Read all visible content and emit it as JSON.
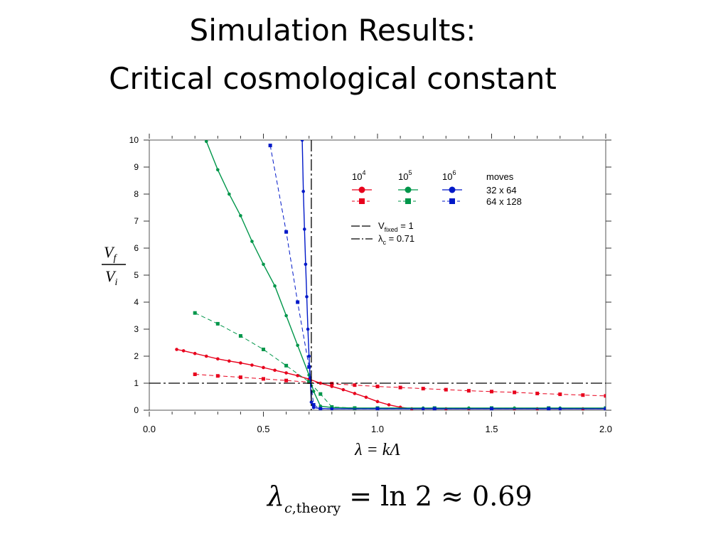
{
  "slide": {
    "title_line1": "Simulation Results:",
    "title_line2": "Critical cosmological constant",
    "formula": {
      "symbol": "λ",
      "subscript_italic": "c",
      "subscript_rest": ",theory",
      "rhs": " = ln 2 ≈ 0.69"
    }
  },
  "chart_data": {
    "type": "scatter",
    "xlabel": "λ = kΛ",
    "ylabel_numerator": "V",
    "ylabel_numerator_sub": "f",
    "ylabel_denominator": "V",
    "ylabel_denominator_sub": "i",
    "xlim": [
      0.0,
      2.0
    ],
    "ylim": [
      0,
      10
    ],
    "x_ticks": [
      "0.0",
      "0.5",
      "1.0",
      "1.5",
      "2.0"
    ],
    "y_ticks": [
      "0",
      "1",
      "2",
      "3",
      "4",
      "5",
      "6",
      "7",
      "8",
      "9",
      "10"
    ],
    "grid": false,
    "legend": {
      "header": [
        "10",
        "10",
        "10",
        "moves"
      ],
      "header_exponents": [
        "4",
        "5",
        "6"
      ],
      "rows": [
        "32 x 64",
        "64 x 128"
      ],
      "lines": [
        {
          "label": "V",
          "sub": "fixed",
          "rest": " = 1"
        },
        {
          "label": "λ",
          "sub": "c",
          "rest": " = 0.71"
        }
      ],
      "placement": "top-right"
    },
    "colors": {
      "1e4": "#e8001c",
      "1e5": "#00964a",
      "1e6": "#0018c8",
      "reference": "#000000"
    },
    "reference_lines": {
      "v_fixed": 1,
      "lambda_c": 0.71
    },
    "series": [
      {
        "moves": "10^4",
        "lattice": "32 x 64",
        "marker": "circle",
        "color_key": "1e4",
        "style": "solid",
        "x": [
          0.12,
          0.15,
          0.2,
          0.25,
          0.3,
          0.35,
          0.4,
          0.45,
          0.5,
          0.55,
          0.6,
          0.65,
          0.7,
          0.75,
          0.8,
          0.85,
          0.9,
          0.95,
          1.0,
          1.05,
          1.1,
          1.15,
          1.2,
          1.3,
          1.4,
          1.5,
          1.6,
          1.7,
          1.8,
          1.9,
          2.0
        ],
        "y": [
          2.25,
          2.2,
          2.1,
          2.0,
          1.9,
          1.82,
          1.75,
          1.67,
          1.58,
          1.48,
          1.38,
          1.28,
          1.15,
          1.0,
          0.88,
          0.76,
          0.62,
          0.48,
          0.32,
          0.2,
          0.11,
          0.05,
          0.05,
          0.05,
          0.05,
          0.05,
          0.05,
          0.05,
          0.05,
          0.05,
          0.05
        ]
      },
      {
        "moves": "10^4",
        "lattice": "64 x 128",
        "marker": "square",
        "color_key": "1e4",
        "style": "dashed",
        "x": [
          0.2,
          0.3,
          0.4,
          0.5,
          0.6,
          0.7,
          0.8,
          0.9,
          1.0,
          1.1,
          1.2,
          1.3,
          1.4,
          1.5,
          1.6,
          1.7,
          1.8,
          1.9,
          2.0
        ],
        "y": [
          1.33,
          1.27,
          1.22,
          1.16,
          1.1,
          1.04,
          0.98,
          0.93,
          0.88,
          0.84,
          0.8,
          0.76,
          0.72,
          0.69,
          0.66,
          0.62,
          0.59,
          0.56,
          0.53
        ]
      },
      {
        "moves": "10^5",
        "lattice": "32 x 64",
        "marker": "circle",
        "color_key": "1e5",
        "style": "solid",
        "x": [
          0.25,
          0.3,
          0.35,
          0.4,
          0.45,
          0.5,
          0.55,
          0.6,
          0.65,
          0.7,
          0.72,
          0.75,
          0.8,
          0.9,
          1.0,
          1.2,
          1.4,
          1.6,
          1.8,
          2.0
        ],
        "y": [
          9.95,
          8.9,
          8.0,
          7.2,
          6.25,
          5.4,
          4.6,
          3.5,
          2.4,
          1.3,
          0.7,
          0.15,
          0.1,
          0.08,
          0.08,
          0.08,
          0.08,
          0.08,
          0.08,
          0.08
        ]
      },
      {
        "moves": "10^5",
        "lattice": "64 x 128",
        "marker": "square",
        "color_key": "1e5",
        "style": "dashed",
        "x": [
          0.2,
          0.3,
          0.4,
          0.5,
          0.6,
          0.7,
          0.75,
          0.8,
          0.9,
          1.0,
          1.25,
          1.5,
          1.75,
          2.0
        ],
        "y": [
          3.6,
          3.2,
          2.75,
          2.25,
          1.65,
          1.05,
          0.6,
          0.12,
          0.08,
          0.08,
          0.08,
          0.08,
          0.08,
          0.08
        ]
      },
      {
        "moves": "10^6",
        "lattice": "32 x 64",
        "marker": "circle",
        "color_key": "1e6",
        "style": "solid",
        "x": [
          0.67,
          0.675,
          0.68,
          0.685,
          0.69,
          0.695,
          0.7,
          0.705,
          0.71,
          0.72,
          0.75,
          0.8,
          1.0,
          1.2,
          1.5,
          1.8,
          2.0
        ],
        "y": [
          10.0,
          8.1,
          6.7,
          5.4,
          4.2,
          3.0,
          2.0,
          1.2,
          0.3,
          0.1,
          0.06,
          0.05,
          0.05,
          0.05,
          0.05,
          0.05,
          0.05
        ]
      },
      {
        "moves": "10^6",
        "lattice": "64 x 128",
        "marker": "square",
        "color_key": "1e6",
        "style": "dashed",
        "x": [
          0.53,
          0.6,
          0.65,
          0.7,
          0.72,
          0.75,
          1.0,
          1.25,
          1.5,
          1.75,
          2.0
        ],
        "y": [
          9.8,
          6.6,
          4.0,
          1.6,
          0.2,
          0.05,
          0.05,
          0.05,
          0.05,
          0.05,
          0.05
        ]
      }
    ]
  }
}
